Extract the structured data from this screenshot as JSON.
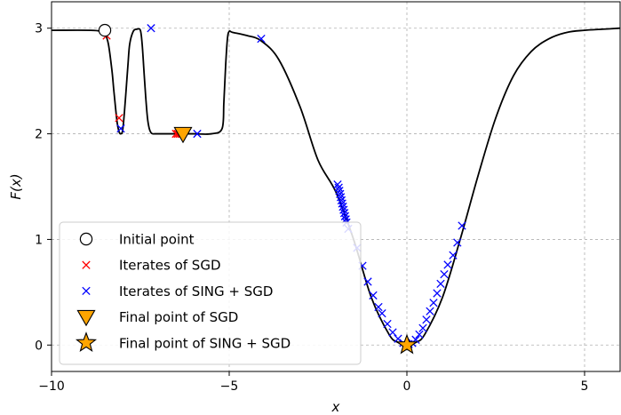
{
  "chart_data": {
    "type": "line",
    "title": "",
    "xlabel": "x",
    "ylabel": "F(x)",
    "xlim": [
      -10,
      6
    ],
    "ylim": [
      -0.25,
      3.25
    ],
    "xticks": [
      -10,
      -5,
      0,
      5
    ],
    "yticks": [
      0,
      1,
      2,
      3
    ],
    "grid": true,
    "legend_position": "lower-left",
    "curve": {
      "color": "#000000",
      "x": [
        -10,
        -8.9,
        -8.6,
        -8.5,
        -8.4,
        -8.3,
        -8.25,
        -8.2,
        -8.15,
        -8.1,
        -8.05,
        -8.0,
        -7.95,
        -7.9,
        -7.85,
        -7.8,
        -7.7,
        -7.6,
        -7.5,
        -7.45,
        -7.4,
        -7.35,
        -7.3,
        -7.25,
        -7.2,
        -7.15,
        -7.1,
        -7.05,
        -7.0,
        -6.95,
        -6.9,
        -6.85,
        -6.8,
        -6.75,
        -6.7,
        -6.6,
        -6.5,
        -6.3,
        -6.0,
        -5.5,
        -5.2,
        -5.15,
        -5.1,
        -5.05,
        -5.0,
        -4.9,
        -4.5,
        -4.1,
        -3.6,
        -3.0,
        -2.5,
        -2.0,
        -1.5,
        -1.0,
        -0.5,
        -0.25,
        0,
        0.25,
        0.5,
        1.0,
        1.5,
        2.0,
        2.5,
        3.0,
        3.5,
        4.0,
        4.5,
        5.0,
        5.5,
        6.0
      ],
      "y": [
        2.98,
        2.98,
        2.97,
        2.95,
        2.85,
        2.6,
        2.42,
        2.25,
        2.1,
        2.02,
        2.0,
        2.03,
        2.2,
        2.42,
        2.65,
        2.85,
        2.97,
        2.99,
        2.98,
        2.85,
        2.6,
        2.35,
        2.15,
        2.05,
        2.01,
        2.0,
        2.0,
        2.0,
        2.0,
        2.0,
        2.0,
        2.0,
        2.0,
        2.0,
        2.0,
        2.0,
        2.0,
        2.0,
        2.0,
        2.0,
        2.05,
        2.3,
        2.65,
        2.9,
        2.97,
        2.96,
        2.93,
        2.88,
        2.7,
        2.25,
        1.75,
        1.45,
        1.0,
        0.45,
        0.1,
        0.025,
        0.0,
        0.025,
        0.1,
        0.45,
        1.0,
        1.6,
        2.15,
        2.55,
        2.78,
        2.9,
        2.96,
        2.98,
        2.99,
        3.0
      ]
    },
    "series": [
      {
        "name": "Initial point",
        "marker": "o",
        "color": "#000000",
        "fill": "#ffffff",
        "x": [
          -8.5
        ],
        "y": [
          2.98
        ]
      },
      {
        "name": "Iterates of SGD",
        "marker": "x",
        "color": "#ff0000",
        "x": [
          -8.45,
          -8.1,
          -6.5,
          -6.45,
          -6.4,
          -6.35
        ],
        "y": [
          2.93,
          2.15,
          2.0,
          2.0,
          2.0,
          2.0
        ]
      },
      {
        "name": "Iterates of SING + SGD",
        "marker": "x",
        "color": "#0000ff",
        "x": [
          -8.05,
          -7.2,
          -5.9,
          -4.1,
          -1.95,
          -1.92,
          -1.9,
          -1.88,
          -1.86,
          -1.84,
          -1.82,
          -1.8,
          -1.78,
          -1.76,
          -1.74,
          -1.72,
          -1.7,
          -1.65,
          -1.4,
          -1.25,
          -1.1,
          -0.95,
          -0.8,
          -0.7,
          -0.55,
          -0.4,
          -0.25,
          -0.1,
          0.05,
          0.15,
          0.25,
          0.35,
          0.45,
          0.55,
          0.65,
          0.75,
          0.85,
          0.95,
          1.05,
          1.15,
          1.3,
          1.42,
          1.55
        ],
        "y": [
          2.05,
          3.0,
          2.0,
          2.9,
          1.52,
          1.49,
          1.46,
          1.43,
          1.4,
          1.37,
          1.34,
          1.31,
          1.28,
          1.25,
          1.22,
          1.19,
          1.16,
          1.1,
          0.92,
          0.75,
          0.6,
          0.47,
          0.36,
          0.3,
          0.2,
          0.12,
          0.06,
          0.02,
          0.01,
          0.02,
          0.05,
          0.1,
          0.16,
          0.24,
          0.32,
          0.4,
          0.49,
          0.58,
          0.67,
          0.76,
          0.85,
          0.97,
          1.13
        ]
      },
      {
        "name": "Final point of SGD",
        "marker": "v",
        "color": "#000000",
        "fill": "#ffa500",
        "x": [
          -6.3
        ],
        "y": [
          2.0
        ]
      },
      {
        "name": "Final point of SING + SGD",
        "marker": "*",
        "color": "#000000",
        "fill": "#ffa500",
        "x": [
          0.0
        ],
        "y": [
          0.0
        ]
      }
    ]
  }
}
